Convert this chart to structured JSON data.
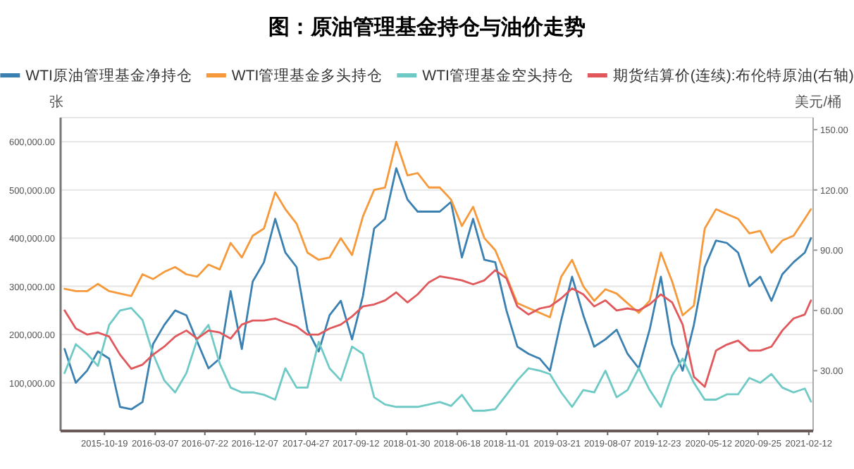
{
  "chart_data": {
    "type": "line",
    "title": "图：原油管理基金持仓与油价走势",
    "ylabel": "张",
    "y2label": "美元/桶",
    "legend": "top",
    "grid": "y",
    "x": [
      "2015-07",
      "2015-08",
      "2015-09",
      "2015-10",
      "2015-11",
      "2015-12",
      "2016-01",
      "2016-02",
      "2016-03",
      "2016-04",
      "2016-05",
      "2016-06",
      "2016-07",
      "2016-08",
      "2016-09",
      "2016-10",
      "2016-11",
      "2016-12",
      "2017-01",
      "2017-02",
      "2017-03",
      "2017-04",
      "2017-05",
      "2017-06",
      "2017-07",
      "2017-08",
      "2017-09",
      "2017-10",
      "2017-11",
      "2017-12",
      "2018-01",
      "2018-02",
      "2018-03",
      "2018-04",
      "2018-05",
      "2018-06",
      "2018-07",
      "2018-08",
      "2018-09",
      "2018-10",
      "2018-11",
      "2018-12",
      "2019-01",
      "2019-02",
      "2019-03",
      "2019-04",
      "2019-05",
      "2019-06",
      "2019-07",
      "2019-08",
      "2019-09",
      "2019-10",
      "2019-11",
      "2019-12",
      "2020-01",
      "2020-02",
      "2020-03",
      "2020-04",
      "2020-05",
      "2020-06",
      "2020-07",
      "2020-08",
      "2020-09",
      "2020-10",
      "2020-11",
      "2020-12",
      "2021-01",
      "2021-02",
      "2021-02-18"
    ],
    "series": [
      {
        "name": "WTI原油管理基金净持仓",
        "color": "#3a80b0",
        "values": [
          170000,
          100000,
          125000,
          165000,
          150000,
          50000,
          45000,
          60000,
          180000,
          220000,
          250000,
          240000,
          185000,
          130000,
          150000,
          290000,
          170000,
          310000,
          350000,
          440000,
          370000,
          340000,
          210000,
          165000,
          240000,
          270000,
          190000,
          280000,
          420000,
          440000,
          545000,
          480000,
          455000,
          455000,
          455000,
          475000,
          360000,
          440000,
          355000,
          350000,
          250000,
          175000,
          160000,
          150000,
          125000,
          230000,
          320000,
          240000,
          175000,
          190000,
          210000,
          160000,
          130000,
          210000,
          320000,
          180000,
          125000,
          220000,
          340000,
          395000,
          390000,
          370000,
          300000,
          320000,
          270000,
          325000,
          350000,
          370000,
          400000
        ]
      },
      {
        "name": "WTI管理基金多头持仓",
        "color": "#f5993a",
        "values": [
          295000,
          290000,
          290000,
          305000,
          290000,
          285000,
          280000,
          325000,
          315000,
          330000,
          340000,
          325000,
          320000,
          345000,
          335000,
          390000,
          360000,
          405000,
          420000,
          495000,
          460000,
          430000,
          370000,
          355000,
          360000,
          400000,
          365000,
          445000,
          500000,
          505000,
          600000,
          530000,
          535000,
          505000,
          505000,
          480000,
          425000,
          465000,
          400000,
          375000,
          320000,
          265000,
          255000,
          245000,
          236000,
          320000,
          355000,
          300000,
          270000,
          294000,
          285000,
          265000,
          245000,
          270000,
          370000,
          310000,
          240000,
          260000,
          420000,
          460000,
          450000,
          440000,
          410000,
          415000,
          370000,
          395000,
          405000,
          440000,
          460000
        ]
      },
      {
        "name": "WTI管理基金空头持仓",
        "color": "#6fcac6",
        "values": [
          120000,
          180000,
          160000,
          135000,
          220000,
          250000,
          255000,
          230000,
          160000,
          105000,
          80000,
          120000,
          190000,
          220000,
          140000,
          90000,
          80000,
          80000,
          75000,
          65000,
          130000,
          90000,
          90000,
          185000,
          130000,
          105000,
          175000,
          160000,
          70000,
          55000,
          50000,
          50000,
          50000,
          55000,
          60000,
          52000,
          75000,
          42000,
          42000,
          45000,
          75000,
          105000,
          130000,
          125000,
          118000,
          80000,
          50000,
          85000,
          80000,
          125000,
          70000,
          85000,
          130000,
          85000,
          50000,
          115000,
          150000,
          100000,
          65000,
          65000,
          76000,
          76000,
          110000,
          100000,
          118000,
          90000,
          80000,
          88000,
          61000
        ]
      },
      {
        "name": "期货结算价(连续):布伦特原油(右轴)",
        "color": "#e0575c",
        "axis": "y2",
        "values": [
          60,
          51,
          48,
          49,
          47,
          38,
          31,
          33,
          38,
          42,
          47,
          50,
          46,
          50,
          49,
          46,
          53,
          55,
          55,
          56,
          54,
          52,
          48,
          48,
          51,
          53,
          57,
          62,
          63,
          65,
          69,
          64,
          68,
          74,
          77,
          76,
          75,
          73,
          75,
          80,
          76,
          62,
          58,
          61,
          62,
          66,
          71,
          68,
          62,
          65,
          60,
          61,
          60,
          63,
          68,
          64,
          53,
          27,
          22,
          40,
          43,
          45,
          40,
          40,
          42,
          50,
          56,
          58,
          65
        ]
      }
    ],
    "xlim": [
      "2015-06-20",
      "2021-02-24"
    ],
    "xticks": [
      "2015-10-19",
      "2016-03-07",
      "2016-07-22",
      "2016-12-07",
      "2017-04-27",
      "2017-09-12",
      "2018-01-30",
      "2018-06-18",
      "2018-11-01",
      "2019-03-21",
      "2019-08-07",
      "2019-12-23",
      "2020-05-12",
      "2020-09-25",
      "2021-02-12"
    ],
    "ylim": [
      0,
      650000
    ],
    "yticks": [
      {
        "value": 100000,
        "label": "100,000.00"
      },
      {
        "value": 200000,
        "label": "200,000.00"
      },
      {
        "value": 300000,
        "label": "300,000.00"
      },
      {
        "value": 400000,
        "label": "400,000.00"
      },
      {
        "value": 500000,
        "label": "500,000.00"
      },
      {
        "value": 600000,
        "label": "600,000.00"
      }
    ],
    "y2lim": [
      0,
      156
    ],
    "y2ticks": [
      {
        "value": 30,
        "label": "30.00"
      },
      {
        "value": 60,
        "label": "60.00"
      },
      {
        "value": 90,
        "label": "90.00"
      },
      {
        "value": 120,
        "label": "120.00"
      },
      {
        "value": 150,
        "label": "150.00"
      }
    ]
  }
}
